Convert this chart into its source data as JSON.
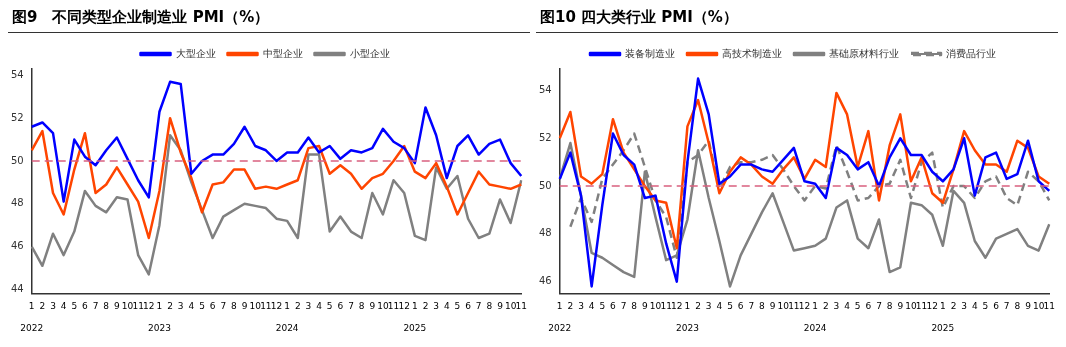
{
  "chart_data": [
    {
      "type": "line",
      "title": "图9　不同类型企业制造业 PMI（%）",
      "legend": "top",
      "categories": [
        "1\n2022",
        "2",
        "3",
        "4",
        "5",
        "6",
        "7",
        "8",
        "9",
        "10",
        "11",
        "12",
        "1\n2023",
        "2",
        "3",
        "4",
        "5",
        "6",
        "7",
        "8",
        "9",
        "10",
        "11",
        "12",
        "1\n2024",
        "2",
        "3",
        "4",
        "5",
        "6",
        "7",
        "8",
        "9",
        "10",
        "11",
        "12",
        "1\n2025",
        "2",
        "3",
        "4",
        "5",
        "6",
        "7",
        "8",
        "9",
        "10",
        "11"
      ],
      "ylim": [
        43.8,
        54.3
      ],
      "yticks": [
        44,
        46,
        48,
        50,
        52,
        54
      ],
      "ref_lines": [
        {
          "axis": "y",
          "value": 50,
          "color": "#d9607f",
          "line_style": "dashed"
        }
      ],
      "series": [
        {
          "name": "大型企业",
          "color": "#0000ff",
          "values": [
            51.6,
            51.8,
            51.3,
            48.1,
            51.0,
            50.2,
            49.8,
            50.5,
            51.1,
            50.1,
            49.1,
            48.3,
            52.3,
            53.7,
            53.6,
            49.4,
            50.0,
            50.3,
            50.3,
            50.8,
            51.6,
            50.7,
            50.5,
            50.0,
            50.4,
            50.4,
            51.1,
            50.4,
            50.7,
            50.1,
            50.5,
            50.4,
            50.6,
            51.5,
            50.9,
            50.6,
            49.9,
            52.5,
            51.2,
            49.2,
            50.7,
            51.2,
            50.3,
            50.8,
            51.0,
            49.9,
            49.3
          ]
        },
        {
          "name": "中型企业",
          "color": "#ff4500",
          "values": [
            50.5,
            51.4,
            48.5,
            47.5,
            49.6,
            51.3,
            48.5,
            48.9,
            49.7,
            48.9,
            48.1,
            46.4,
            48.6,
            52.0,
            50.4,
            49.2,
            47.6,
            48.9,
            49.0,
            49.6,
            49.6,
            48.7,
            48.8,
            48.7,
            48.9,
            49.1,
            50.6,
            50.7,
            49.4,
            49.8,
            49.4,
            48.7,
            49.2,
            49.4,
            50.0,
            50.7,
            49.5,
            49.2,
            49.9,
            48.8,
            47.5,
            48.5,
            49.5,
            48.9,
            48.8,
            48.7,
            48.9
          ]
        },
        {
          "name": "小型企业",
          "color": "#808080",
          "values": [
            46.0,
            45.1,
            46.6,
            45.6,
            46.7,
            48.6,
            47.9,
            47.6,
            48.3,
            48.2,
            45.6,
            44.7,
            47.0,
            51.2,
            50.5,
            49.0,
            47.7,
            46.4,
            47.4,
            47.7,
            48.0,
            47.9,
            47.8,
            47.3,
            47.2,
            46.4,
            50.3,
            50.3,
            46.7,
            47.4,
            46.7,
            46.4,
            48.5,
            47.5,
            49.1,
            48.5,
            46.5,
            46.3,
            49.7,
            48.7,
            49.3,
            47.3,
            46.4,
            46.6,
            48.2,
            47.1,
            49.1
          ]
        }
      ]
    },
    {
      "type": "line",
      "title": "图10 四大类行业 PMI（%）",
      "legend": "top",
      "categories": [
        "1\n2022",
        "2",
        "3",
        "4",
        "5",
        "6",
        "7",
        "8",
        "9",
        "10",
        "11",
        "12",
        "1\n2023",
        "2",
        "3",
        "4",
        "5",
        "6",
        "7",
        "8",
        "9",
        "10",
        "11",
        "12",
        "1\n2024",
        "2",
        "3",
        "4",
        "5",
        "6",
        "7",
        "8",
        "9",
        "10",
        "11",
        "12",
        "1\n2025",
        "2",
        "3",
        "4",
        "5",
        "6",
        "7",
        "8",
        "9",
        "10",
        "11"
      ],
      "ylim": [
        45.5,
        54.9
      ],
      "yticks": [
        46,
        48,
        50,
        52,
        54
      ],
      "ref_lines": [
        {
          "axis": "y",
          "value": 50,
          "color": "#d9607f",
          "line_style": "dashed"
        }
      ],
      "series": [
        {
          "name": "装备制造业",
          "color": "#0000ff",
          "values": [
            50.3,
            51.4,
            49.6,
            45.8,
            49.2,
            52.2,
            51.3,
            50.9,
            49.5,
            49.6,
            47.6,
            46.0,
            51.0,
            54.5,
            53.0,
            50.1,
            50.4,
            50.9,
            50.9,
            50.7,
            50.6,
            51.1,
            51.6,
            50.2,
            50.1,
            49.5,
            51.6,
            51.3,
            50.7,
            51.0,
            50.0,
            51.2,
            52.0,
            51.3,
            51.3,
            50.6,
            50.2,
            50.7,
            52.0,
            49.6,
            51.2,
            51.4,
            50.3,
            50.5,
            51.9,
            50.2,
            49.8
          ]
        },
        {
          "name": "高技术制造业",
          "color": "#ff4500",
          "values": [
            52.0,
            53.1,
            50.4,
            50.1,
            50.5,
            52.8,
            51.4,
            50.7,
            50.0,
            49.4,
            49.3,
            47.4,
            52.5,
            53.6,
            51.8,
            49.7,
            50.6,
            51.2,
            50.9,
            50.4,
            50.1,
            50.7,
            51.2,
            50.3,
            51.1,
            50.8,
            53.9,
            53.0,
            50.8,
            52.3,
            49.4,
            51.7,
            53.0,
            50.2,
            51.2,
            49.7,
            49.3,
            50.7,
            52.3,
            51.5,
            50.9,
            50.9,
            50.6,
            51.9,
            51.6,
            50.4,
            50.1
          ]
        },
        {
          "name": "基础原材料行业",
          "color": "#808080",
          "values": [
            50.3,
            51.8,
            49.6,
            47.2,
            47.0,
            46.7,
            46.4,
            46.2,
            50.6,
            48.7,
            46.9,
            47.1,
            48.6,
            51.5,
            49.5,
            47.7,
            45.8,
            47.1,
            48.0,
            48.9,
            49.7,
            48.5,
            47.3,
            47.4,
            47.5,
            47.8,
            49.1,
            49.4,
            47.8,
            47.4,
            48.6,
            46.4,
            46.6,
            49.3,
            49.2,
            48.8,
            47.5,
            49.8,
            49.3,
            47.7,
            47.0,
            47.8,
            48.0,
            48.2,
            47.5,
            47.3,
            48.4
          ]
        },
        {
          "name": "消费品行业",
          "color": "#808080",
          "line_style": "dashed",
          "values": [
            null,
            48.3,
            49.5,
            48.5,
            50.3,
            50.9,
            51.5,
            52.2,
            50.8,
            49.4,
            48.7,
            47.0,
            51.0,
            51.3,
            51.9,
            49.9,
            50.8,
            51.0,
            51.0,
            51.1,
            51.3,
            50.7,
            50.0,
            49.4,
            50.0,
            49.9,
            51.7,
            50.6,
            49.4,
            49.5,
            50.0,
            50.1,
            51.1,
            49.5,
            51.0,
            51.4,
            49.1,
            50.0,
            50.0,
            49.5,
            50.2,
            50.4,
            49.5,
            49.2,
            50.6,
            50.2,
            49.4
          ]
        }
      ]
    }
  ]
}
